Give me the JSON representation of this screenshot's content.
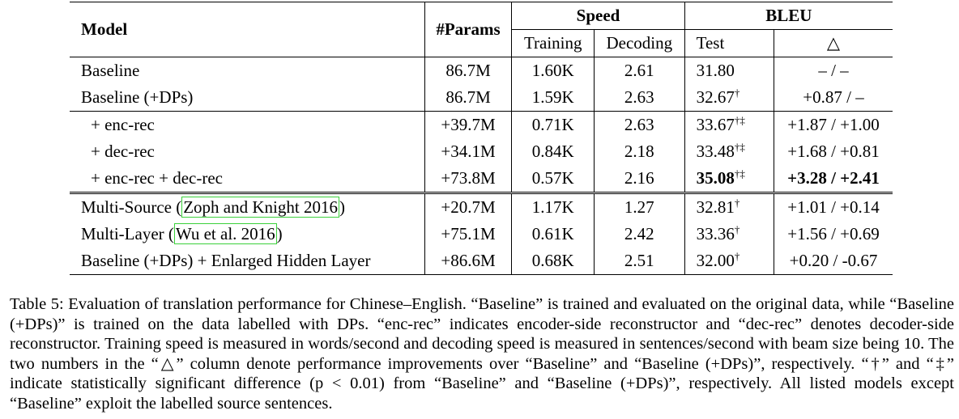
{
  "table": {
    "header": {
      "model": "Model",
      "params": "#Params",
      "speed": "Speed",
      "bleu": "BLEU",
      "training": "Training",
      "decoding": "Decoding",
      "test": "Test",
      "delta": "△"
    },
    "group1": [
      {
        "model": "Baseline",
        "params": "86.7M",
        "training": "1.60K",
        "decoding": "2.61",
        "test": "31.80",
        "mark": "",
        "delta": "– / –"
      },
      {
        "model": "Baseline (+DPs)",
        "params": "86.7M",
        "training": "1.59K",
        "decoding": "2.63",
        "test": "32.67",
        "mark": "†",
        "delta": "+0.87 / –"
      }
    ],
    "group2": [
      {
        "model": "+ enc-rec",
        "params": "+39.7M",
        "training": "0.71K",
        "decoding": "2.63",
        "test": "33.67",
        "mark": "†‡",
        "delta": "+1.87 / +1.00"
      },
      {
        "model": "+ dec-rec",
        "params": "+34.1M",
        "training": "0.84K",
        "decoding": "2.18",
        "test": "33.48",
        "mark": "†‡",
        "delta": "+1.68 / +0.81"
      },
      {
        "model": "+ enc-rec + dec-rec",
        "params": "+73.8M",
        "training": "0.57K",
        "decoding": "2.16",
        "test": "35.08",
        "mark": "†‡",
        "delta": "+3.28 / +2.41"
      }
    ],
    "group3": [
      {
        "model_prefix": "Multi-Source (",
        "cite": "Zoph and Knight 2016",
        "model_suffix": ")",
        "params": "+20.7M",
        "training": "1.17K",
        "decoding": "1.27",
        "test": "32.81",
        "mark": "†",
        "delta": "+1.01 / +0.14"
      },
      {
        "model_prefix": "Multi-Layer (",
        "cite": "Wu et al. 2016",
        "model_suffix": ")",
        "params": "+75.1M",
        "training": "0.61K",
        "decoding": "2.42",
        "test": "33.36",
        "mark": "†",
        "delta": "+1.56 / +0.69"
      },
      {
        "model": "Baseline (+DPs) + Enlarged Hidden Layer",
        "params": "+86.6M",
        "training": "0.68K",
        "decoding": "2.51",
        "test": "32.00",
        "mark": "†",
        "delta": "+0.20 / -0.67"
      }
    ]
  },
  "caption": "Table 5:  Evaluation of translation performance for Chinese–English. “Baseline” is trained and evaluated on the original data, while “Baseline (+DPs)” is trained on the data labelled with DPs. “enc-rec” indicates encoder-side reconstructor and “dec-rec” denotes decoder-side reconstructor. Training speed is measured in words/second and decoding speed is measured in sentences/second with beam size being 10. The two numbers in the “△” column denote performance improvements over “Baseline” and “Baseline (+DPs)”, respectively. “†” and “‡” indicate statistically significant difference (p < 0.01) from “Baseline” and “Baseline (+DPs)”, respectively. All listed models except “Baseline” exploit the labelled source sentences.",
  "colors": {
    "citation_box": "#3bd13b"
  }
}
